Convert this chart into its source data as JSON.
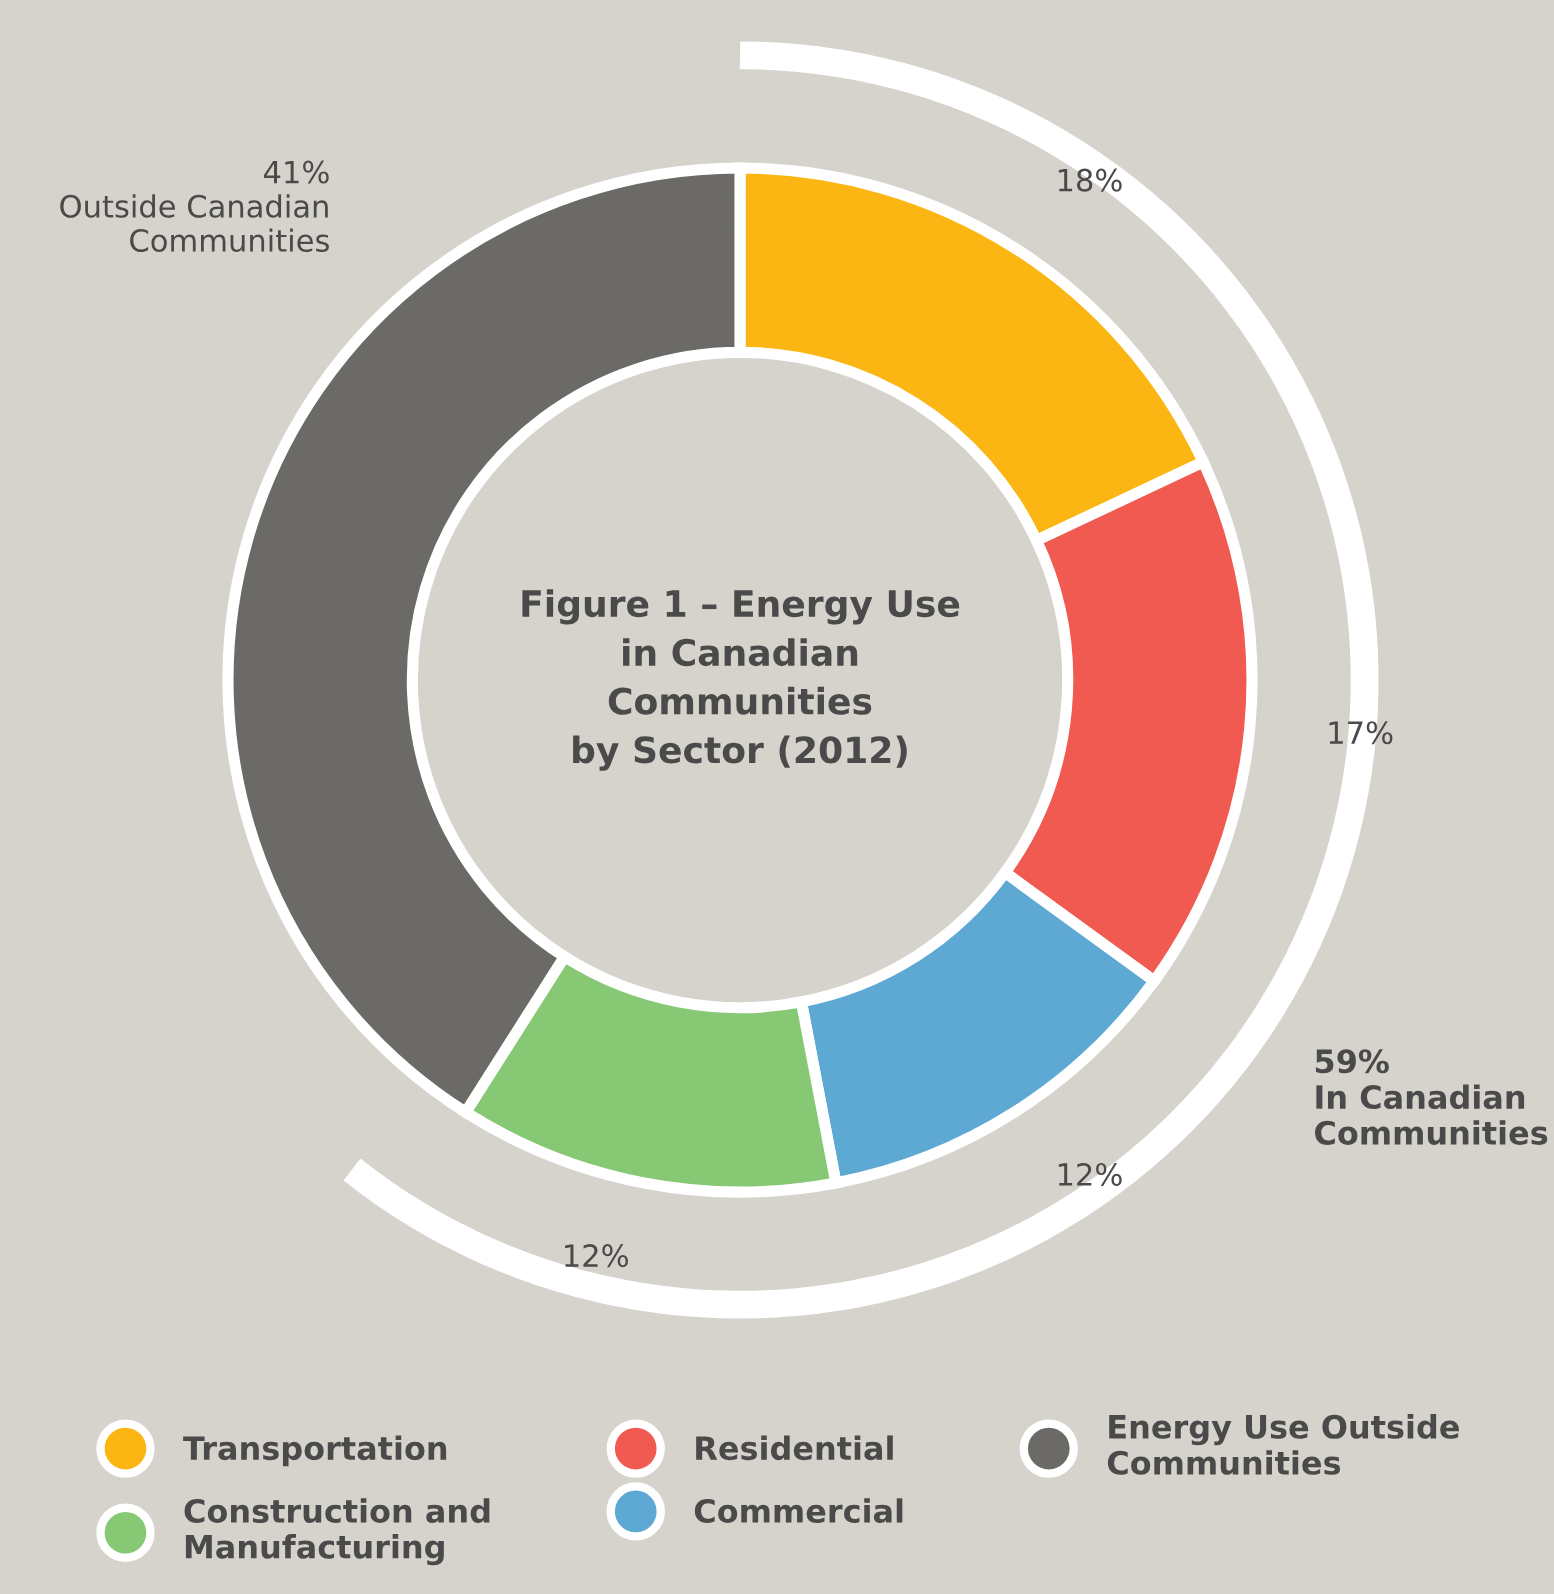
{
  "chart_data": {
    "type": "donut",
    "title": "Figure 1 – Energy Use\nin Canadian\nCommunities\nby Sector (2012)",
    "categories": [
      "Transportation",
      "Residential",
      "Commercial",
      "Construction and\nManufacturing",
      "Energy Use Outside\nCommunities"
    ],
    "values": [
      18,
      17,
      12,
      12,
      41
    ],
    "colors": [
      "#fbb614",
      "#f15a50",
      "#5ea8d4",
      "#86c873",
      "#6b6a67"
    ],
    "value_labels": [
      "18%",
      "17%",
      "12%",
      "12%",
      "41%\nOutside Canadian\nCommunities"
    ],
    "annotations": [
      "59%\nIn Canadian\nCommunities"
    ],
    "legend": "bottom"
  }
}
